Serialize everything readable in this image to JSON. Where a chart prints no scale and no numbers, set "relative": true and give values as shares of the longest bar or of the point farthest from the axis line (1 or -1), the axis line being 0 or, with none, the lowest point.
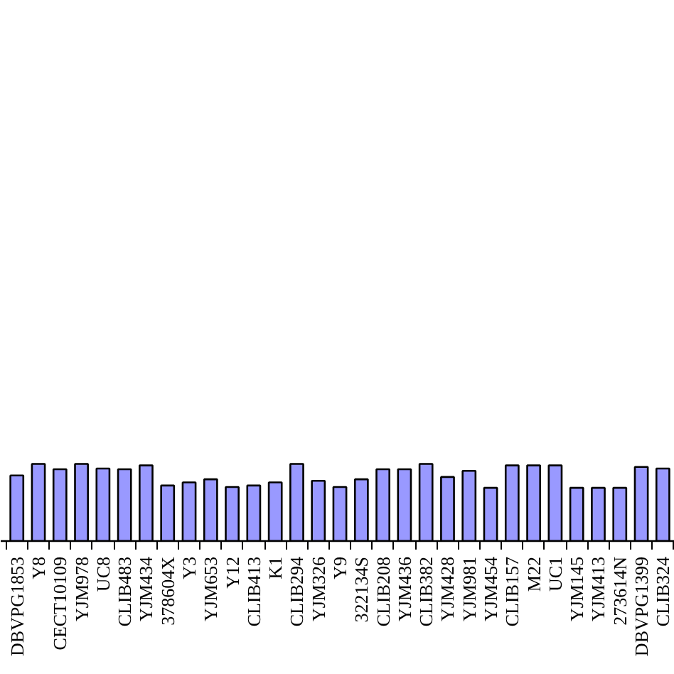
{
  "chart_data": {
    "type": "bar",
    "relative": true,
    "color": "#9999ff",
    "categories": [
      null,
      "DBVPG1853",
      "Y8",
      "CECT10109",
      "YJM978",
      "UC8",
      "CLIB483",
      "YJM434",
      "378604X",
      "Y3",
      "YJM653",
      "Y12",
      "CLIB413",
      "K1",
      "CLIB294",
      "YJM326",
      "Y9",
      "322134S",
      "CLIB208",
      "YJM436",
      "CLIB382",
      "YJM428",
      "YJM981",
      "YJM454",
      "CLIB157",
      "M22",
      "UC1",
      "YJM145",
      "YJM413",
      "273614N",
      "DBVPG1399",
      "CLIB324"
    ],
    "values": [
      null,
      0.85,
      1.0,
      0.93,
      1.0,
      0.94,
      0.93,
      0.98,
      0.72,
      0.76,
      0.8,
      0.7,
      0.72,
      0.76,
      1.0,
      0.78,
      0.7,
      0.8,
      0.93,
      0.93,
      1.0,
      0.83,
      0.91,
      0.69,
      0.98,
      0.98,
      0.98,
      0.69,
      0.69,
      0.69,
      0.96,
      0.94
    ]
  }
}
